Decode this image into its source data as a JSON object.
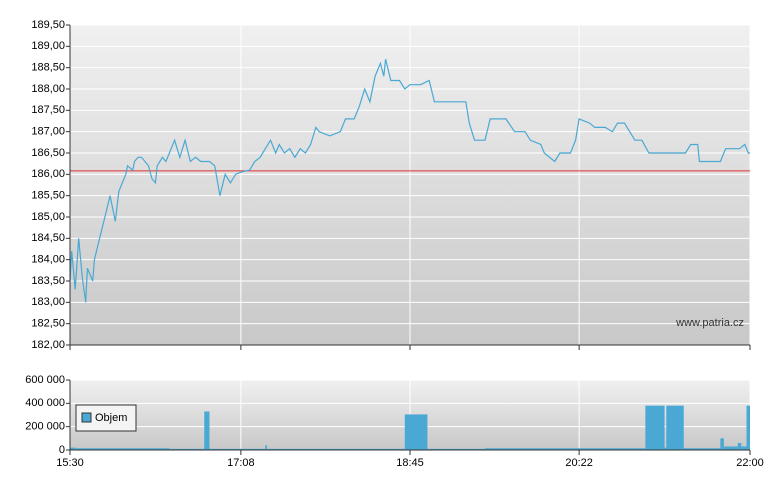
{
  "chart_data": [
    {
      "type": "line",
      "watermark": "www.patria.cz",
      "x": [
        "15:30",
        "15:31",
        "15:33",
        "15:35",
        "15:37",
        "15:39",
        "15:40",
        "15:43",
        "15:44",
        "15:47",
        "15:50",
        "15:53",
        "15:56",
        "15:58",
        "16:00",
        "16:02",
        "16:03",
        "16:06",
        "16:07",
        "16:09",
        "16:11",
        "16:15",
        "16:17",
        "16:19",
        "16:20",
        "16:23",
        "16:25",
        "16:27",
        "16:30",
        "16:33",
        "16:36",
        "16:39",
        "16:42",
        "16:45",
        "16:50",
        "16:53",
        "16:56",
        "16:59",
        "17:02",
        "17:05",
        "17:08",
        "17:13",
        "17:16",
        "17:19",
        "17:22",
        "17:25",
        "17:28",
        "17:30",
        "17:33",
        "17:36",
        "17:39",
        "17:42",
        "17:45",
        "17:48",
        "17:51",
        "17:53",
        "17:59",
        "18:05",
        "18:08",
        "18:13",
        "18:16",
        "18:19",
        "18:22",
        "18:25",
        "18:28",
        "18:30",
        "18:31",
        "18:34",
        "18:39",
        "18:42",
        "18:45",
        "18:51",
        "18:56",
        "18:59",
        "19:08",
        "19:17",
        "19:19",
        "19:22",
        "19:28",
        "19:31",
        "19:40",
        "19:45",
        "19:51",
        "19:54",
        "20:00",
        "20:02",
        "20:08",
        "20:11",
        "20:17",
        "20:20",
        "20:22",
        "20:28",
        "20:31",
        "20:37",
        "20:41",
        "20:44",
        "20:48",
        "20:51",
        "20:54",
        "20:58",
        "21:02",
        "21:08",
        "21:23",
        "21:26",
        "21:30",
        "21:31",
        "21:43",
        "21:46",
        "21:51",
        "21:54",
        "21:57",
        "21:59",
        "22:00"
      ],
      "values": [
        183.5,
        184.2,
        183.3,
        184.5,
        183.6,
        183.0,
        183.8,
        183.5,
        184.0,
        184.5,
        185.0,
        185.5,
        184.9,
        185.6,
        185.8,
        186.0,
        186.2,
        186.1,
        186.3,
        186.4,
        186.4,
        186.2,
        185.9,
        185.8,
        186.2,
        186.4,
        186.3,
        186.5,
        186.8,
        186.4,
        186.8,
        186.3,
        186.4,
        186.3,
        186.3,
        186.2,
        185.5,
        186.0,
        185.8,
        186.0,
        186.05,
        186.1,
        186.3,
        186.4,
        186.6,
        186.8,
        186.5,
        186.7,
        186.5,
        186.6,
        186.4,
        186.6,
        186.5,
        186.7,
        187.1,
        187.0,
        186.9,
        187.0,
        187.3,
        187.3,
        187.6,
        188.0,
        187.7,
        188.3,
        188.6,
        188.3,
        188.7,
        188.2,
        188.2,
        188.0,
        188.1,
        188.1,
        188.2,
        187.7,
        187.7,
        187.7,
        187.2,
        186.8,
        186.8,
        187.3,
        187.3,
        187.0,
        187.0,
        186.8,
        186.7,
        186.5,
        186.3,
        186.5,
        186.5,
        186.8,
        187.3,
        187.2,
        187.1,
        187.1,
        187.0,
        187.2,
        187.2,
        187.0,
        186.8,
        186.8,
        186.5,
        186.5,
        186.5,
        186.7,
        186.7,
        186.3,
        186.3,
        186.6,
        186.6,
        186.6,
        186.7,
        186.5,
        186.5
      ],
      "color": "#4aa8d4",
      "reference_line": 186.08,
      "reference_color": "#e03030",
      "xlim": [
        "15:30",
        "22:00"
      ],
      "xticks": [
        "15:30",
        "17:08",
        "18:45",
        "20:22",
        "22:00"
      ],
      "ylim": [
        182,
        189.5
      ],
      "yticks": [
        {
          "value": 182,
          "label": "182,00"
        },
        {
          "value": 182.5,
          "label": "182,50"
        },
        {
          "value": 183,
          "label": "183,00"
        },
        {
          "value": 183.5,
          "label": "183,50"
        },
        {
          "value": 184,
          "label": "184,00"
        },
        {
          "value": 184.5,
          "label": "184,50"
        },
        {
          "value": 185,
          "label": "185,00"
        },
        {
          "value": 185.5,
          "label": "185,50"
        },
        {
          "value": 186,
          "label": "186,00"
        },
        {
          "value": 186.5,
          "label": "186,50"
        },
        {
          "value": 187,
          "label": "187,00"
        },
        {
          "value": 187.5,
          "label": "187,50"
        },
        {
          "value": 188,
          "label": "188,00"
        },
        {
          "value": 188.5,
          "label": "188,50"
        },
        {
          "value": 189,
          "label": "189,00"
        },
        {
          "value": 189.5,
          "label": "189,50"
        }
      ],
      "grid": true
    },
    {
      "type": "histogram",
      "bins": [
        "15:30",
        "15:33",
        "16:27",
        "16:47",
        "16:50",
        "17:22",
        "17:23",
        "18:42",
        "18:55",
        "19:28",
        "21:00",
        "21:11",
        "21:12",
        "21:22",
        "21:43",
        "21:45",
        "21:53",
        "21:55",
        "21:58",
        "22:00"
      ],
      "series": [
        {
          "name": "Objem",
          "color": "#4aa8d4",
          "values": [
            20000,
            15000,
            10000,
            330000,
            10000,
            40000,
            10000,
            305000,
            10000,
            15000,
            380000,
            20000,
            380000,
            15000,
            100000,
            30000,
            60000,
            30000,
            380000
          ]
        }
      ],
      "xlim": [
        "15:30",
        "22:00"
      ],
      "xticks": [
        "15:30",
        "17:08",
        "18:45",
        "20:22",
        "22:00"
      ],
      "ylim": [
        0,
        600000
      ],
      "yticks": [
        0,
        {
          "value": 200000,
          "label": "200 000"
        },
        {
          "value": 400000,
          "label": "400 000"
        },
        {
          "value": 600000,
          "label": "600 000"
        }
      ],
      "grid": true,
      "legend": "upper-left"
    }
  ]
}
